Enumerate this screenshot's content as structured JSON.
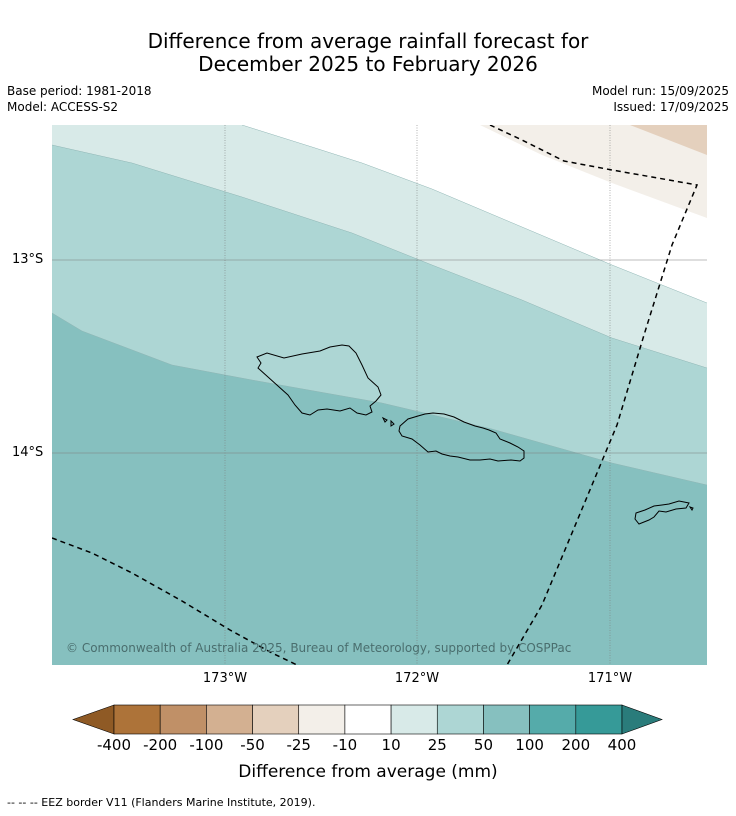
{
  "title_line1": "Difference from average rainfall forecast for",
  "title_line2": "December 2025 to February 2026",
  "base_period": "Base period: 1981-2018",
  "model": "Model: ACCESS-S2",
  "model_run": "Model run: 15/09/2025",
  "issued": "Issued: 17/09/2025",
  "map": {
    "lat_labels": [
      "13°S",
      "14°S"
    ],
    "lon_labels": [
      "173°W",
      "172°W",
      "171°W"
    ],
    "copyright": "© Commonwealth of Australia 2025, Bureau of Meteorology, supported by COSPPac",
    "islands": [
      "Savai'i",
      "Upolu",
      "Tutuila"
    ],
    "band_colors": {
      "lighter": "#d8eae8",
      "light": "#add6d4",
      "medium": "#86c0bf",
      "neutral": "#ffffff",
      "dry_slight": "#f3efe9",
      "dry": "#e4d0bd"
    }
  },
  "colorbar": {
    "ticks": [
      "-400",
      "-200",
      "-100",
      "-50",
      "-25",
      "-10",
      "10",
      "25",
      "50",
      "100",
      "200",
      "400"
    ],
    "colors": [
      "#8f5a25",
      "#ad7339",
      "#c09067",
      "#d3b091",
      "#e4d0bd",
      "#f3efe9",
      "#ffffff",
      "#d8eae8",
      "#add6d4",
      "#86c0bf",
      "#55abaa",
      "#369a98",
      "#2a7c7b"
    ],
    "label": "Difference from average (mm)"
  },
  "footnote": "-- -- -- EEZ border V11 (Flanders Marine Institute, 2019)."
}
